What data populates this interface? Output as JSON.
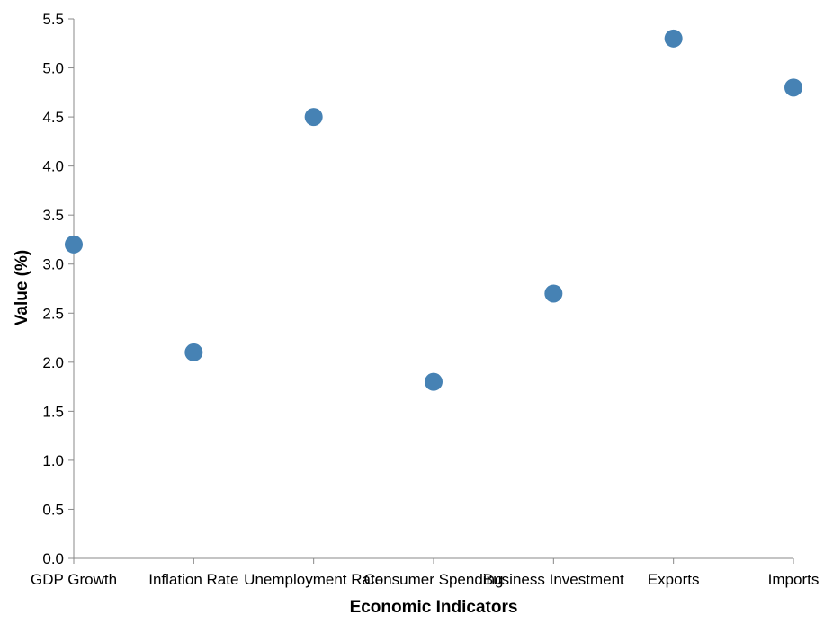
{
  "chart_data": {
    "type": "scatter",
    "categories": [
      "GDP Growth",
      "Inflation Rate",
      "Unemployment Rate",
      "Consumer Spending",
      "Business Investment",
      "Exports",
      "Imports"
    ],
    "values": [
      3.2,
      2.1,
      4.5,
      1.8,
      2.7,
      5.3,
      4.8
    ],
    "xlabel": "Economic Indicators",
    "ylabel": "Value (%)",
    "ylim": [
      0,
      5.5
    ],
    "yticks": [
      "0.0",
      "0.5",
      "1.0",
      "1.5",
      "2.0",
      "2.5",
      "3.0",
      "3.5",
      "4.0",
      "4.5",
      "5.0",
      "5.5"
    ],
    "grid": false,
    "point_color": "#4682b4"
  }
}
